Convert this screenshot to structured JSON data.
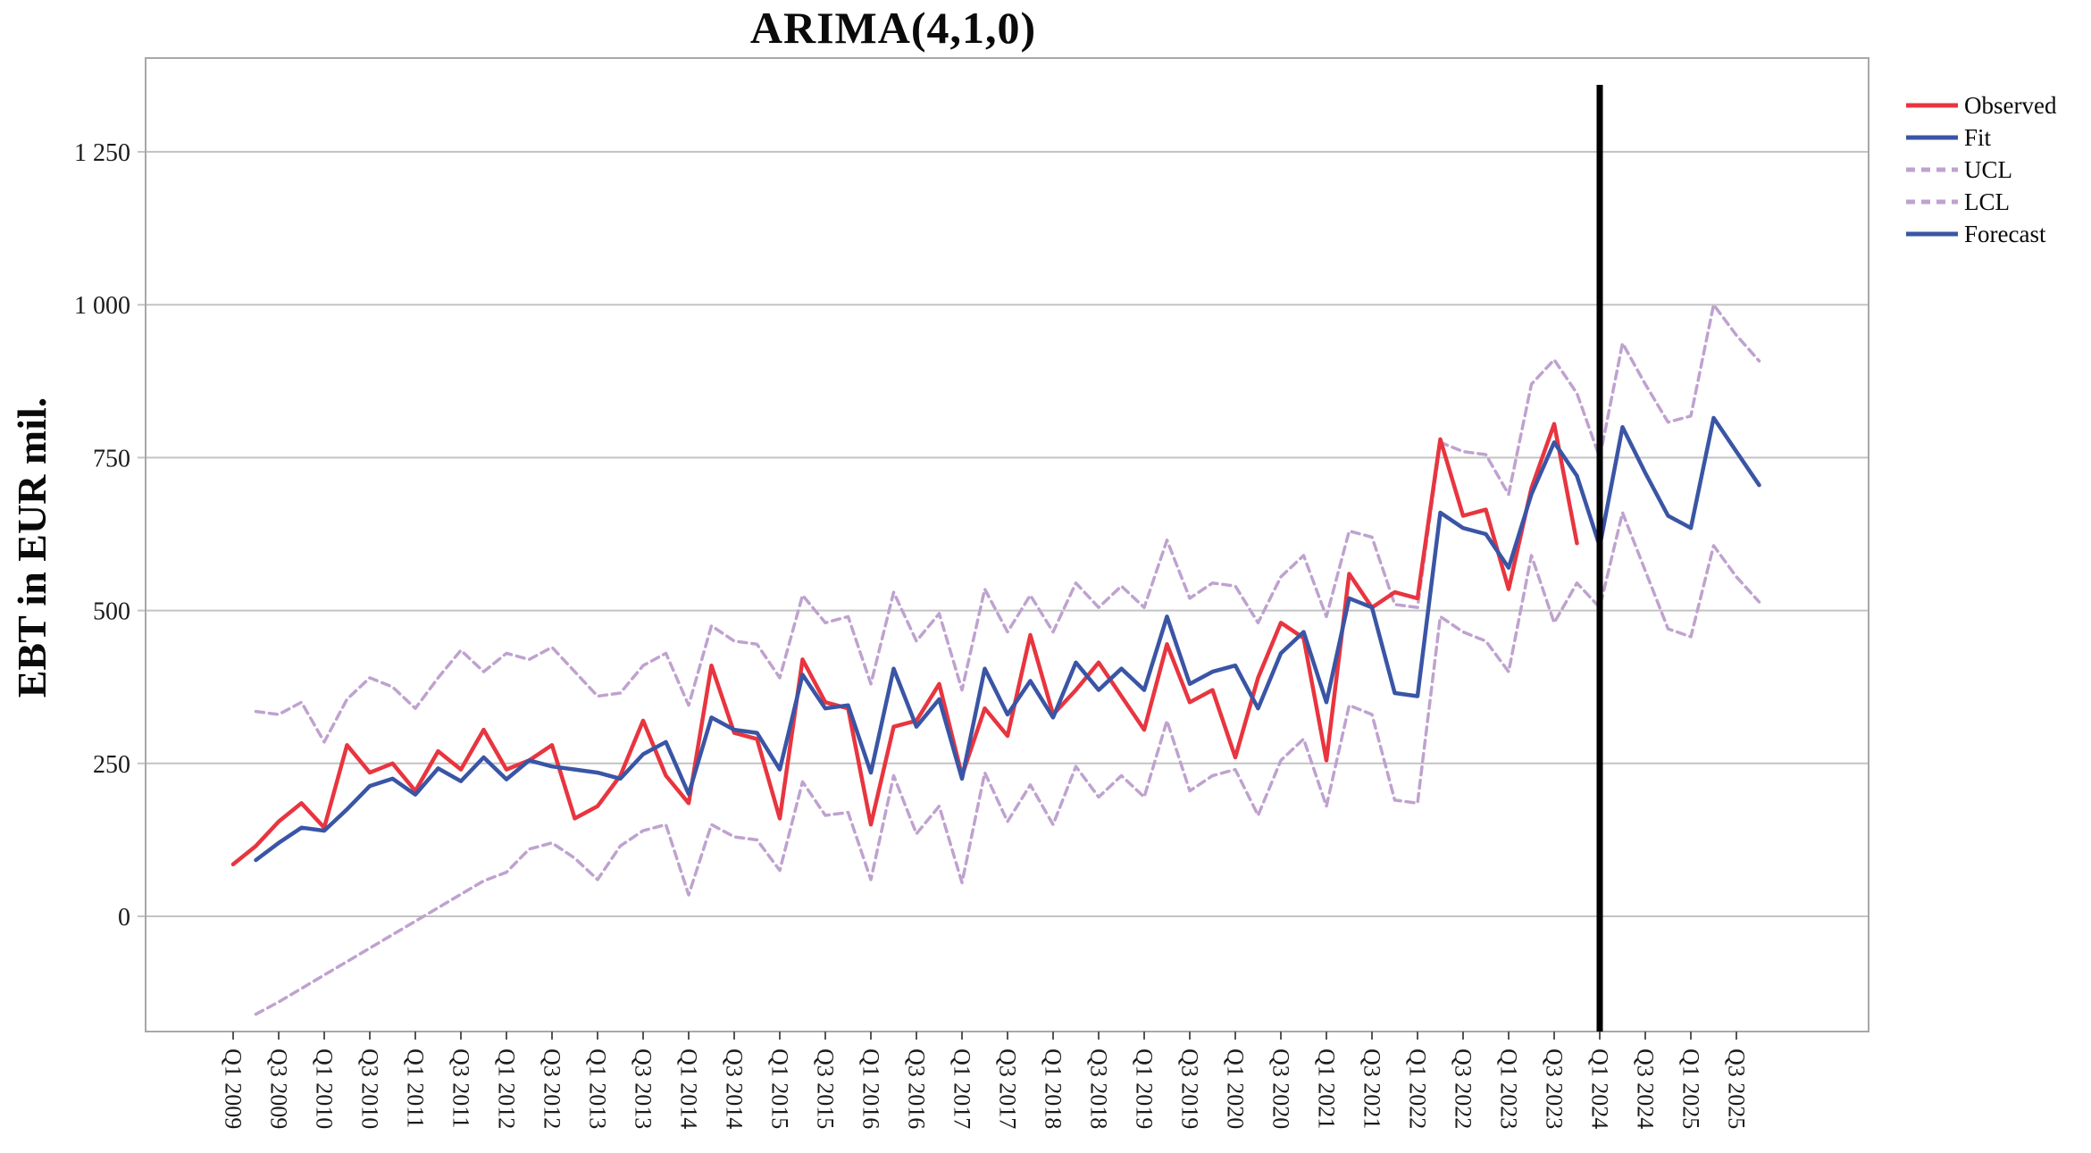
{
  "figure": {
    "title": "ARIMA(4,1,0)",
    "y_axis_label": "EBT in EUR mil."
  },
  "legend": [
    {
      "label": "Observed",
      "color": "#e8353f",
      "dashed": false
    },
    {
      "label": "Fit",
      "color": "#3a55a5",
      "dashed": false
    },
    {
      "label": "UCL",
      "color": "#bfa2cf",
      "dashed": true
    },
    {
      "label": "LCL",
      "color": "#bfa2cf",
      "dashed": true
    },
    {
      "label": "Forecast",
      "color": "#3a55a5",
      "dashed": false
    }
  ],
  "chart_data": {
    "type": "line",
    "title": "ARIMA(4,1,0)",
    "xlabel": "",
    "ylabel": "EBT in EUR mil.",
    "x_unit": "quarter",
    "x_start_quarter": "Q1 2009",
    "x_end_quarter": "Q4 2025",
    "forecast_start_quarter": "Q1 2024",
    "grid": true,
    "legend_position": "top-right",
    "ylim": [
      -190,
      1400
    ],
    "y_tick_values": [
      1250,
      1000,
      750,
      500,
      250,
      0
    ],
    "y_tick_labels": [
      "1 250",
      "1 000",
      "750",
      "500",
      "250",
      "0"
    ],
    "x_tick_labels": [
      "Q1 2009",
      "Q3 2009",
      "Q1 2010",
      "Q3 2010",
      "Q1 2011",
      "Q3 2011",
      "Q1 2012",
      "Q3 2012",
      "Q1 2013",
      "Q3 2013",
      "Q1 2014",
      "Q3 2014",
      "Q1 2015",
      "Q3 2015",
      "Q1 2016",
      "Q3 2016",
      "Q1 2017",
      "Q3 2017",
      "Q1 2018",
      "Q3 2018",
      "Q1 2019",
      "Q3 2019",
      "Q1 2020",
      "Q3 2020",
      "Q1 2021",
      "Q3 2021",
      "Q1 2022",
      "Q3 2022",
      "Q1 2023",
      "Q3 2023",
      "Q1 2024",
      "Q3 2024",
      "Q1 2025",
      "Q3 2025"
    ],
    "reference_line": {
      "at_quarter": "Q1 2024",
      "quarter_index": 60,
      "color": "#000000"
    },
    "series": [
      {
        "name": "Observed",
        "color": "#e8353f",
        "style": "solid",
        "start_index": 0,
        "values": [
          85,
          115,
          155,
          185,
          145,
          280,
          235,
          250,
          205,
          270,
          240,
          305,
          240,
          255,
          280,
          160,
          180,
          230,
          320,
          230,
          185,
          410,
          300,
          290,
          160,
          420,
          350,
          340,
          150,
          310,
          320,
          380,
          230,
          340,
          295,
          460,
          330,
          370,
          415,
          360,
          305,
          445,
          350,
          370,
          260,
          390,
          480,
          455,
          255,
          560,
          505,
          530,
          520,
          780,
          655,
          665,
          535,
          700,
          805,
          610
        ]
      },
      {
        "name": "Fit",
        "color": "#3a55a5",
        "style": "solid",
        "start_index": 1,
        "values": [
          92,
          120,
          145,
          140,
          175,
          213,
          225,
          199,
          242,
          221,
          260,
          224,
          255,
          245,
          240,
          235,
          225,
          265,
          285,
          200,
          325,
          305,
          300,
          240,
          395,
          340,
          345,
          235,
          405,
          310,
          355,
          225,
          405,
          330,
          385,
          325,
          415,
          370,
          405,
          370,
          490,
          380,
          400,
          410,
          340,
          430,
          465,
          350,
          520,
          505,
          365,
          360,
          660,
          635,
          625,
          570,
          690,
          775,
          720
        ]
      },
      {
        "name": "UCL",
        "color": "#bfa2cf",
        "style": "dashed",
        "start_index": 1,
        "values": [
          335,
          330,
          350,
          285,
          355,
          390,
          375,
          340,
          390,
          435,
          400,
          430,
          420,
          440,
          400,
          360,
          365,
          410,
          430,
          345,
          475,
          450,
          445,
          390,
          525,
          480,
          490,
          380,
          530,
          450,
          495,
          370,
          535,
          465,
          525,
          465,
          545,
          505,
          540,
          505,
          615,
          520,
          545,
          540,
          480,
          555,
          590,
          490,
          630,
          620,
          510,
          505,
          775,
          760,
          755,
          690,
          870,
          910,
          855,
          750,
          937,
          870,
          808,
          818,
          1000,
          950,
          908
        ]
      },
      {
        "name": "LCL",
        "color": "#bfa2cf",
        "style": "dashed",
        "start_index": 1,
        "values": [
          -160,
          -140,
          -118,
          -96,
          -74,
          -52,
          -30,
          -8,
          14,
          36,
          58,
          72,
          110,
          120,
          95,
          60,
          115,
          140,
          150,
          35,
          150,
          130,
          125,
          75,
          220,
          165,
          170,
          60,
          230,
          135,
          180,
          55,
          235,
          155,
          215,
          150,
          245,
          195,
          230,
          195,
          320,
          205,
          230,
          240,
          165,
          255,
          290,
          180,
          345,
          330,
          190,
          185,
          490,
          465,
          450,
          400,
          590,
          480,
          545,
          505,
          660,
          565,
          470,
          457,
          606,
          555,
          514
        ]
      },
      {
        "name": "Forecast",
        "color": "#3a55a5",
        "style": "solid",
        "start_index": 59,
        "values": [
          720,
          605,
          800,
          725,
          655,
          635,
          815,
          760,
          705
        ]
      }
    ]
  },
  "colors": {
    "gridline": "#c3c3c3",
    "frame": "#a8a8a8",
    "tick_text": "#1a1a1a",
    "reference_line": "#000000",
    "background": "#ffffff"
  }
}
